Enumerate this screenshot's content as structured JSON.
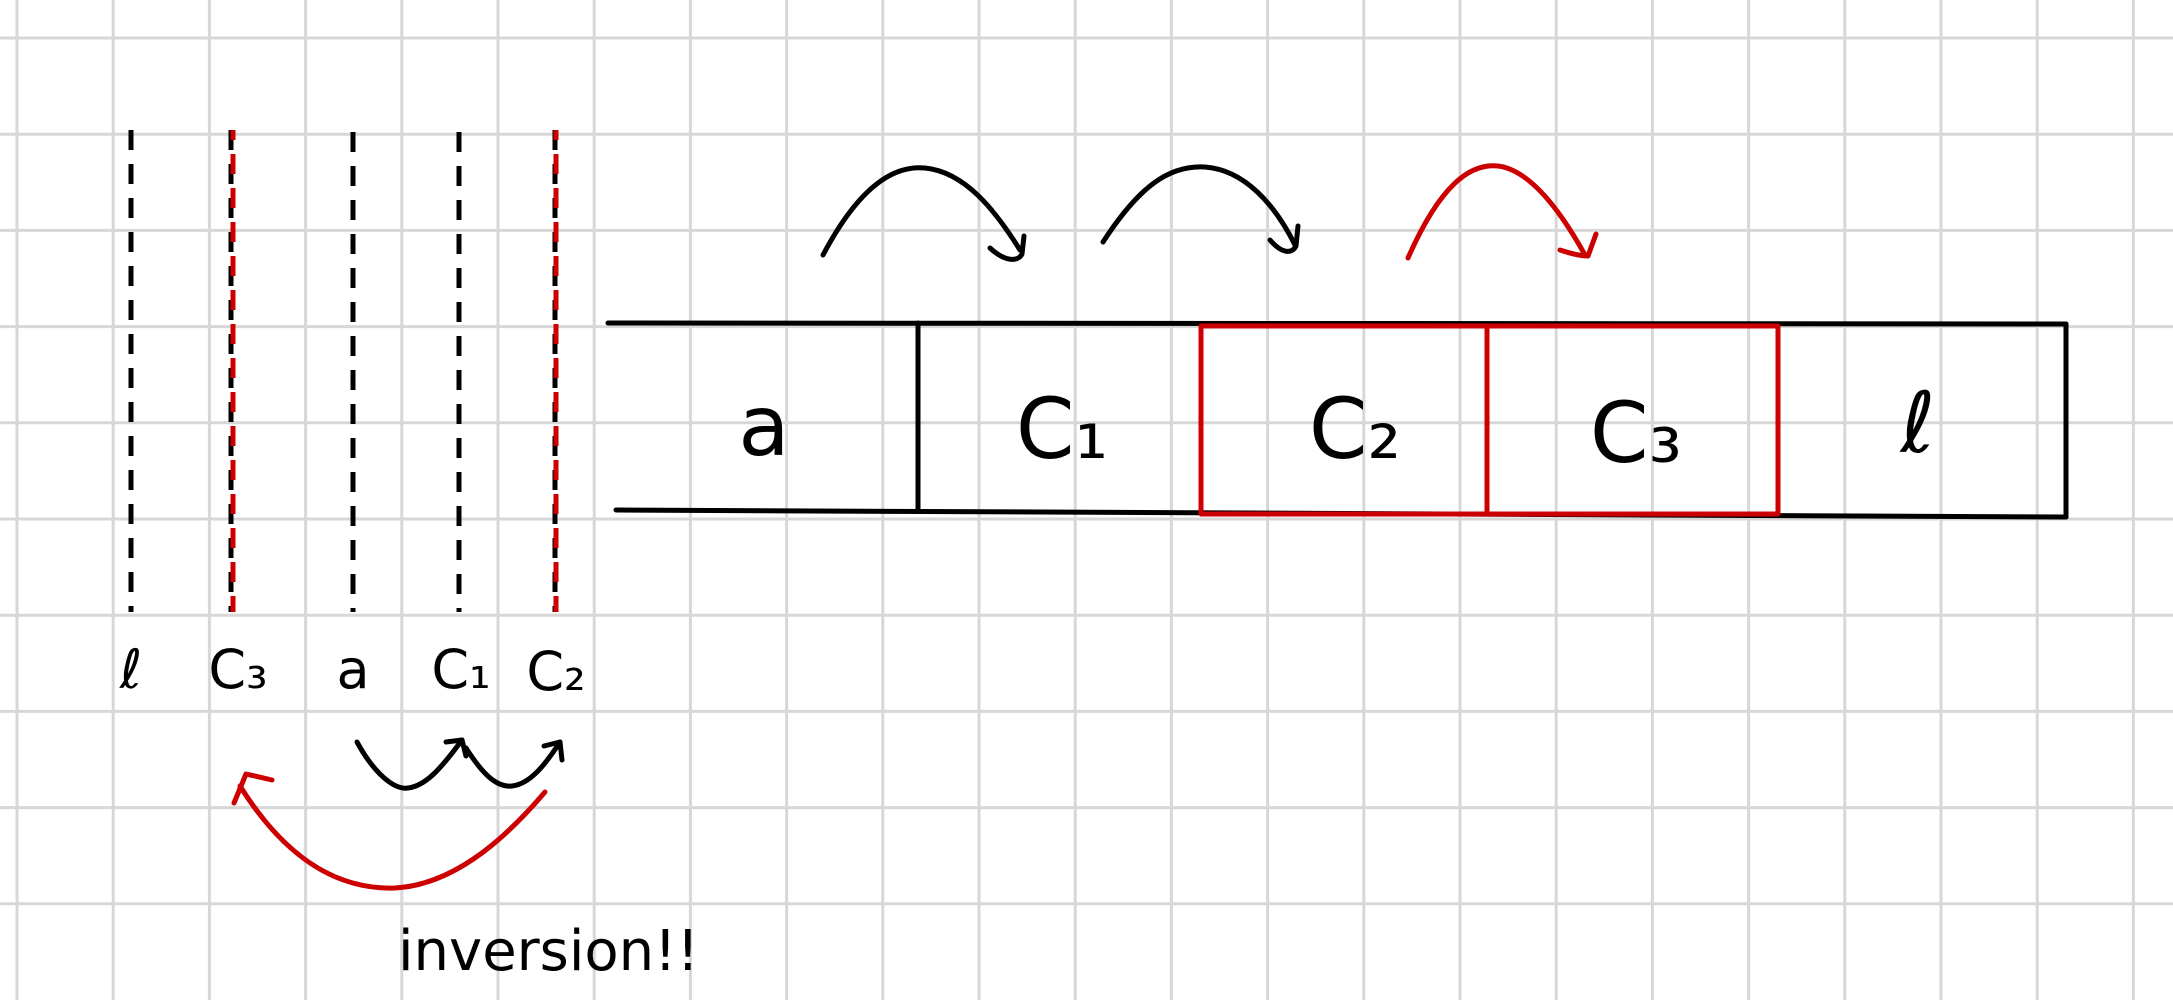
{
  "colors": {
    "grid": "#d7d7d7",
    "ink": "#000000",
    "highlight": "#cc0000",
    "background": "#ffffff"
  },
  "timeline_labels": [
    {
      "id": "ca",
      "text": "ℓ",
      "highlight": false
    },
    {
      "id": "c3",
      "text": "C₃",
      "highlight": true
    },
    {
      "id": "a",
      "text": "a",
      "highlight": false
    },
    {
      "id": "c1",
      "text": "C₁",
      "highlight": false
    },
    {
      "id": "c2",
      "text": "C₂",
      "highlight": true
    }
  ],
  "cells": [
    {
      "id": "a",
      "text": "a",
      "highlight": false
    },
    {
      "id": "c1",
      "text": "C₁",
      "highlight": false
    },
    {
      "id": "c2",
      "text": "C₂",
      "highlight": true
    },
    {
      "id": "c3",
      "text": "C₃",
      "highlight": true
    },
    {
      "id": "ca",
      "text": "ℓ",
      "highlight": false
    }
  ],
  "annotation": "inversion!!"
}
